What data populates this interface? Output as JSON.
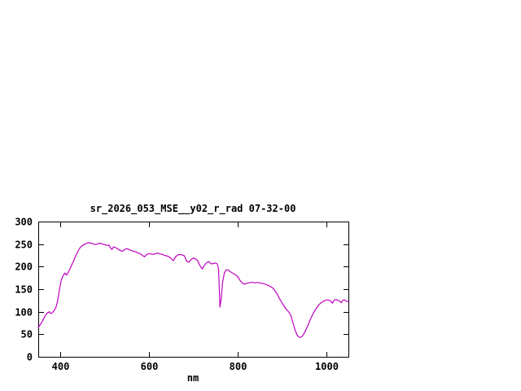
{
  "chart_data": {
    "type": "line",
    "title": "sr_2026_053_MSE__y02_r_rad 07-32-00",
    "xlabel": "nm",
    "ylabel": "",
    "xlim": [
      350,
      1050
    ],
    "ylim": [
      0,
      300
    ],
    "xticks": [
      400,
      600,
      800,
      1000
    ],
    "yticks": [
      0,
      50,
      100,
      150,
      200,
      250,
      300
    ],
    "grid": false,
    "legend": "none",
    "line_color": "#C000C0",
    "border_color": "#000000",
    "series": [
      {
        "name": "sr_2026_053_MSE__y02_r_rad",
        "points": [
          [
            350,
            65
          ],
          [
            355,
            72
          ],
          [
            360,
            80
          ],
          [
            365,
            90
          ],
          [
            370,
            97
          ],
          [
            375,
            100
          ],
          [
            378,
            96
          ],
          [
            382,
            98
          ],
          [
            386,
            103
          ],
          [
            390,
            110
          ],
          [
            394,
            125
          ],
          [
            398,
            150
          ],
          [
            402,
            170
          ],
          [
            406,
            180
          ],
          [
            410,
            186
          ],
          [
            414,
            181
          ],
          [
            418,
            188
          ],
          [
            422,
            196
          ],
          [
            426,
            205
          ],
          [
            430,
            213
          ],
          [
            435,
            225
          ],
          [
            440,
            235
          ],
          [
            445,
            243
          ],
          [
            450,
            247
          ],
          [
            455,
            250
          ],
          [
            460,
            252
          ],
          [
            465,
            253
          ],
          [
            470,
            252
          ],
          [
            475,
            250
          ],
          [
            480,
            249
          ],
          [
            485,
            251
          ],
          [
            490,
            252
          ],
          [
            495,
            250
          ],
          [
            500,
            249
          ],
          [
            505,
            247
          ],
          [
            510,
            248
          ],
          [
            512,
            243
          ],
          [
            516,
            238
          ],
          [
            520,
            244
          ],
          [
            525,
            242
          ],
          [
            530,
            239
          ],
          [
            535,
            236
          ],
          [
            540,
            234
          ],
          [
            545,
            238
          ],
          [
            550,
            240
          ],
          [
            555,
            238
          ],
          [
            560,
            236
          ],
          [
            565,
            234
          ],
          [
            570,
            233
          ],
          [
            575,
            230
          ],
          [
            580,
            229
          ],
          [
            585,
            225
          ],
          [
            590,
            222
          ],
          [
            595,
            227
          ],
          [
            600,
            229
          ],
          [
            605,
            228
          ],
          [
            610,
            227
          ],
          [
            615,
            229
          ],
          [
            620,
            230
          ],
          [
            625,
            228
          ],
          [
            630,
            227
          ],
          [
            635,
            225
          ],
          [
            640,
            224
          ],
          [
            645,
            222
          ],
          [
            650,
            218
          ],
          [
            655,
            213
          ],
          [
            660,
            222
          ],
          [
            665,
            226
          ],
          [
            670,
            227
          ],
          [
            675,
            226
          ],
          [
            680,
            224
          ],
          [
            685,
            212
          ],
          [
            690,
            210
          ],
          [
            695,
            216
          ],
          [
            700,
            219
          ],
          [
            705,
            217
          ],
          [
            710,
            213
          ],
          [
            715,
            202
          ],
          [
            720,
            195
          ],
          [
            725,
            203
          ],
          [
            730,
            209
          ],
          [
            735,
            211
          ],
          [
            740,
            206
          ],
          [
            745,
            207
          ],
          [
            750,
            208
          ],
          [
            754,
            206
          ],
          [
            757,
            195
          ],
          [
            760,
            110
          ],
          [
            763,
            130
          ],
          [
            766,
            165
          ],
          [
            770,
            186
          ],
          [
            774,
            193
          ],
          [
            778,
            193
          ],
          [
            782,
            190
          ],
          [
            786,
            187
          ],
          [
            790,
            185
          ],
          [
            795,
            182
          ],
          [
            800,
            178
          ],
          [
            805,
            170
          ],
          [
            810,
            164
          ],
          [
            815,
            161
          ],
          [
            820,
            163
          ],
          [
            825,
            164
          ],
          [
            830,
            165
          ],
          [
            835,
            165
          ],
          [
            840,
            164
          ],
          [
            845,
            165
          ],
          [
            850,
            164
          ],
          [
            855,
            163
          ],
          [
            860,
            162
          ],
          [
            865,
            160
          ],
          [
            870,
            158
          ],
          [
            875,
            155
          ],
          [
            880,
            152
          ],
          [
            885,
            145
          ],
          [
            890,
            138
          ],
          [
            895,
            128
          ],
          [
            900,
            120
          ],
          [
            905,
            112
          ],
          [
            910,
            105
          ],
          [
            915,
            100
          ],
          [
            920,
            92
          ],
          [
            925,
            75
          ],
          [
            930,
            58
          ],
          [
            935,
            47
          ],
          [
            940,
            43
          ],
          [
            945,
            44
          ],
          [
            950,
            52
          ],
          [
            955,
            62
          ],
          [
            960,
            73
          ],
          [
            965,
            85
          ],
          [
            970,
            95
          ],
          [
            975,
            104
          ],
          [
            980,
            111
          ],
          [
            985,
            117
          ],
          [
            990,
            121
          ],
          [
            995,
            124
          ],
          [
            1000,
            126
          ],
          [
            1005,
            126
          ],
          [
            1010,
            124
          ],
          [
            1014,
            119
          ],
          [
            1018,
            126
          ],
          [
            1022,
            127
          ],
          [
            1026,
            125
          ],
          [
            1030,
            124
          ],
          [
            1034,
            120
          ],
          [
            1038,
            126
          ],
          [
            1042,
            126
          ],
          [
            1046,
            123
          ],
          [
            1050,
            122
          ]
        ]
      }
    ]
  }
}
